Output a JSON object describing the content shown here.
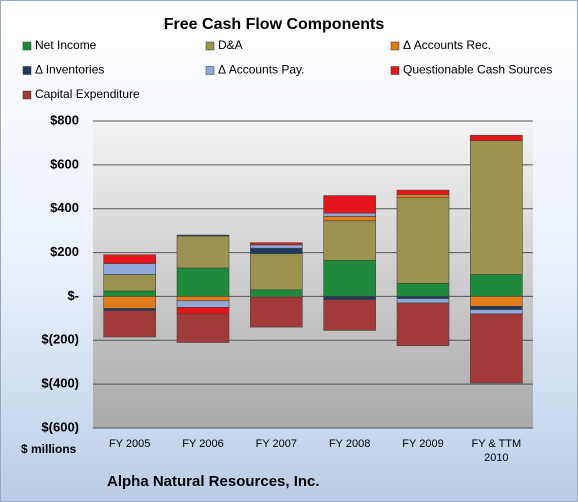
{
  "chart_data": {
    "type": "stacked_bar",
    "title": "Free Cash Flow Components",
    "subtitle": "Alpha Natural Resources, Inc.",
    "y_axis_label": "$ millions",
    "categories": [
      "FY 2005",
      "FY 2006",
      "FY 2007",
      "FY 2008",
      "FY 2009",
      "FY & TTM 2010"
    ],
    "series": [
      {
        "name": "Net Income",
        "color": "#1e8a3c",
        "values": [
          25,
          130,
          30,
          165,
          60,
          100
        ]
      },
      {
        "name": "D&A",
        "color": "#9b9450",
        "values": [
          75,
          145,
          165,
          180,
          390,
          610
        ]
      },
      {
        "name": "Δ Accounts Rec.",
        "color": "#e07b1a",
        "values": [
          -55,
          -20,
          -5,
          20,
          15,
          -45
        ]
      },
      {
        "name": "Δ Inventories",
        "color": "#1f3a5f",
        "values": [
          -10,
          5,
          25,
          -15,
          -10,
          -15
        ]
      },
      {
        "name": "Δ Accounts Pay.",
        "color": "#8fa8d8",
        "values": [
          50,
          -30,
          15,
          15,
          -20,
          -20
        ]
      },
      {
        "name": "Questionable Cash Sources",
        "color": "#e8141c",
        "values": [
          40,
          -30,
          10,
          80,
          20,
          25
        ]
      },
      {
        "name": "Capital Expenditure",
        "color": "#a33a3a",
        "values": [
          -120,
          -130,
          -135,
          -140,
          -195,
          -315
        ]
      }
    ],
    "ylim": [
      -600,
      800
    ],
    "yticks": [
      {
        "value": -600,
        "label": "$(600)"
      },
      {
        "value": -400,
        "label": "$(400)"
      },
      {
        "value": -200,
        "label": "$(200)"
      },
      {
        "value": 0,
        "label": "$-"
      },
      {
        "value": 200,
        "label": "$200"
      },
      {
        "value": 400,
        "label": "$400"
      },
      {
        "value": 600,
        "label": "$600"
      },
      {
        "value": 800,
        "label": "$800"
      }
    ],
    "grid": true
  }
}
